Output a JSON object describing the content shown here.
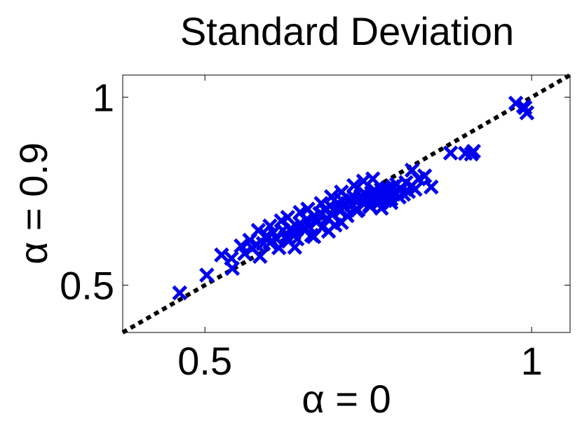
{
  "chart_data": {
    "type": "scatter",
    "title": "Standard Deviation",
    "xlabel": "α = 0",
    "ylabel": "α = 0.9",
    "xlim": [
      0.42,
      1.085
    ],
    "ylim": [
      0.42,
      1.085
    ],
    "scale": "log",
    "x_ticks": [
      {
        "value": 0.5,
        "label": "0.5"
      },
      {
        "value": 1,
        "label": "1"
      }
    ],
    "y_ticks": [
      {
        "value": 0.5,
        "label": "0.5"
      },
      {
        "value": 1,
        "label": "1"
      }
    ],
    "grid": false,
    "reference_line": {
      "style": "dotted",
      "color": "#000000",
      "description": "y = x"
    },
    "marker": {
      "shape": "x",
      "color": "#0000ee"
    },
    "series": [
      {
        "points": [
          [
            0.474,
            0.486
          ],
          [
            0.502,
            0.519
          ],
          [
            0.518,
            0.559
          ],
          [
            0.529,
            0.552
          ],
          [
            0.53,
            0.532
          ],
          [
            0.54,
            0.578
          ],
          [
            0.544,
            0.562
          ],
          [
            0.55,
            0.59
          ],
          [
            0.553,
            0.573
          ],
          [
            0.558,
            0.58
          ],
          [
            0.562,
            0.556
          ],
          [
            0.566,
            0.583
          ],
          [
            0.57,
            0.6
          ],
          [
            0.574,
            0.585
          ],
          [
            0.578,
            0.607
          ],
          [
            0.582,
            0.593
          ],
          [
            0.585,
            0.574
          ],
          [
            0.59,
            0.612
          ],
          [
            0.594,
            0.598
          ],
          [
            0.597,
            0.588
          ],
          [
            0.6,
            0.616
          ],
          [
            0.604,
            0.605
          ],
          [
            0.608,
            0.593
          ],
          [
            0.612,
            0.628
          ],
          [
            0.616,
            0.615
          ],
          [
            0.62,
            0.636
          ],
          [
            0.623,
            0.621
          ],
          [
            0.627,
            0.601
          ],
          [
            0.63,
            0.645
          ],
          [
            0.634,
            0.632
          ],
          [
            0.638,
            0.651
          ],
          [
            0.641,
            0.618
          ],
          [
            0.645,
            0.66
          ],
          [
            0.648,
            0.64
          ],
          [
            0.652,
            0.67
          ],
          [
            0.655,
            0.648
          ],
          [
            0.659,
            0.624
          ],
          [
            0.662,
            0.676
          ],
          [
            0.666,
            0.657
          ],
          [
            0.669,
            0.683
          ],
          [
            0.672,
            0.668
          ],
          [
            0.676,
            0.646
          ],
          [
            0.679,
            0.687
          ],
          [
            0.683,
            0.672
          ],
          [
            0.686,
            0.692
          ],
          [
            0.689,
            0.68
          ],
          [
            0.692,
            0.66
          ],
          [
            0.696,
            0.695
          ],
          [
            0.699,
            0.677
          ],
          [
            0.703,
            0.699
          ],
          [
            0.706,
            0.685
          ],
          [
            0.709,
            0.671
          ],
          [
            0.712,
            0.703
          ],
          [
            0.715,
            0.689
          ],
          [
            0.718,
            0.707
          ],
          [
            0.721,
            0.694
          ],
          [
            0.724,
            0.679
          ],
          [
            0.727,
            0.711
          ],
          [
            0.73,
            0.697
          ],
          [
            0.733,
            0.683
          ],
          [
            0.736,
            0.715
          ],
          [
            0.739,
            0.702
          ],
          [
            0.742,
            0.687
          ],
          [
            0.745,
            0.719
          ],
          [
            0.748,
            0.705
          ],
          [
            0.751,
            0.725
          ],
          [
            0.755,
            0.692
          ],
          [
            0.758,
            0.712
          ],
          [
            0.762,
            0.699
          ],
          [
            0.766,
            0.73
          ],
          [
            0.77,
            0.706
          ],
          [
            0.775,
            0.721
          ],
          [
            0.781,
            0.712
          ],
          [
            0.787,
            0.74
          ],
          [
            0.622,
            0.662
          ],
          [
            0.64,
            0.676
          ],
          [
            0.654,
            0.693
          ],
          [
            0.668,
            0.705
          ],
          [
            0.686,
            0.722
          ],
          [
            0.7,
            0.734
          ],
          [
            0.714,
            0.74
          ],
          [
            0.596,
            0.642
          ],
          [
            0.612,
            0.654
          ],
          [
            0.574,
            0.622
          ],
          [
            0.588,
            0.634
          ],
          [
            0.56,
            0.612
          ],
          [
            0.69,
            0.658
          ],
          [
            0.71,
            0.668
          ],
          [
            0.727,
            0.664
          ],
          [
            0.742,
            0.678
          ],
          [
            0.605,
            0.575
          ],
          [
            0.63,
            0.598
          ],
          [
            0.65,
            0.61
          ],
          [
            0.668,
            0.63
          ],
          [
            0.776,
            0.764
          ],
          [
            0.842,
            0.814
          ],
          [
            0.869,
            0.813
          ],
          [
            0.88,
            0.811
          ],
          [
            0.884,
            0.819
          ],
          [
            0.797,
            0.748
          ],
          [
            0.808,
            0.718
          ],
          [
            0.967,
            0.978
          ],
          [
            0.983,
            0.967
          ],
          [
            0.986,
            0.962
          ],
          [
            0.99,
            0.944
          ]
        ]
      }
    ]
  }
}
